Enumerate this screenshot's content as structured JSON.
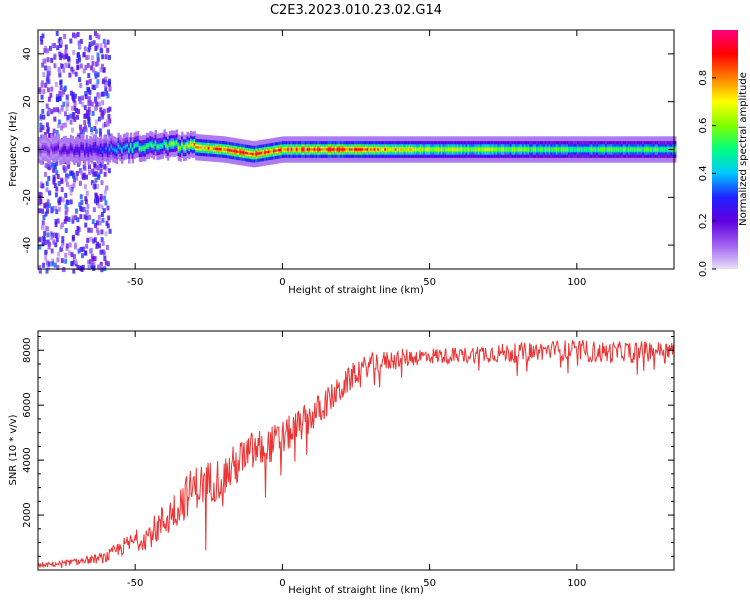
{
  "title": "C2E3.2023.010.23.02.G14",
  "chart_data": [
    {
      "type": "heatmap",
      "xlabel": "Height of straight line (km)",
      "ylabel": "Frequency (Hz)",
      "xlim": [
        -83,
        133
      ],
      "ylim": [
        -50,
        50
      ],
      "xticks": [
        -50,
        0,
        50,
        100
      ],
      "yticks": [
        -40,
        -20,
        0,
        20,
        40
      ],
      "colorbar": {
        "label": "Normalized spectral amplitude",
        "range": [
          0,
          1
        ],
        "ticks": [
          "0.0",
          "0.2",
          "0.4",
          "0.6",
          "0.8"
        ],
        "colormap": [
          "#e8e0f8",
          "#a060f0",
          "#6000e0",
          "#2020ff",
          "#00c8ff",
          "#00ff80",
          "#80ff00",
          "#ffff00",
          "#ff8000",
          "#ff0000",
          "#ff0080"
        ]
      },
      "ridge": {
        "description_points_x": [
          -83,
          -60,
          -50,
          -40,
          -30,
          -20,
          -10,
          0,
          20,
          50,
          100,
          133
        ],
        "center_frequency_hz": [
          0,
          0,
          1,
          2,
          1,
          0,
          -2,
          0,
          0,
          0,
          0,
          0
        ],
        "peak_amplitude": [
          0.15,
          0.35,
          0.55,
          0.6,
          0.85,
          0.9,
          0.95,
          0.9,
          0.95,
          0.7,
          0.6,
          0.6
        ]
      }
    },
    {
      "type": "line",
      "xlabel": "Height of straight line (km)",
      "ylabel": "SNR (10 * v/v)",
      "xlim": [
        -83,
        133
      ],
      "ylim": [
        0,
        8700
      ],
      "xticks": [
        -50,
        0,
        50,
        100
      ],
      "yticks": [
        2000,
        4000,
        6000,
        8000
      ],
      "series": [
        {
          "color": "#ee3333",
          "x": [
            -83,
            -70,
            -60,
            -55,
            -45,
            -40,
            -35,
            -30,
            -25,
            -20,
            -15,
            -10,
            -5,
            0,
            10,
            20,
            25,
            30,
            40,
            50,
            60,
            70,
            80,
            90,
            100,
            110,
            120,
            133
          ],
          "y": [
            150,
            300,
            450,
            800,
            1300,
            1800,
            2400,
            3000,
            3200,
            3400,
            3900,
            4300,
            4500,
            4800,
            5600,
            6600,
            7200,
            7500,
            7700,
            7800,
            7800,
            7900,
            7900,
            8000,
            8000,
            7900,
            8000,
            8000
          ],
          "noise": [
            80,
            120,
            200,
            300,
            500,
            700,
            800,
            800,
            800,
            800,
            800,
            800,
            700,
            650,
            600,
            500,
            450,
            400,
            350,
            300,
            300,
            350,
            350,
            350,
            400,
            400,
            350,
            300
          ]
        }
      ]
    }
  ]
}
